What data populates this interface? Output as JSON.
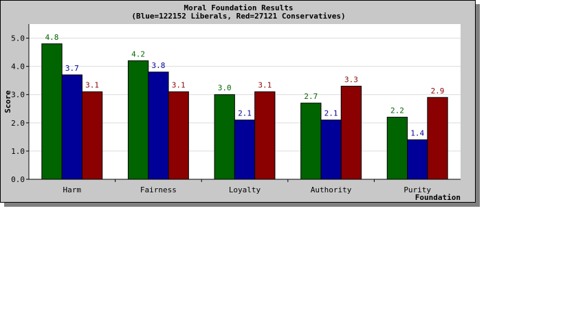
{
  "chart_data": {
    "type": "bar",
    "title": "Moral Foundation Results",
    "subtitle": "(Blue=122152 Liberals, Red=27121 Conservatives)",
    "xlabel": "Foundation",
    "ylabel": "Score",
    "categories": [
      "Harm",
      "Fairness",
      "Loyalty",
      "Authority",
      "Purity"
    ],
    "series": [
      {
        "color": "#006400",
        "values": [
          4.8,
          4.2,
          3.0,
          2.7,
          2.2
        ]
      },
      {
        "color": "#000099",
        "values": [
          3.7,
          3.8,
          2.1,
          2.1,
          1.4
        ]
      },
      {
        "color": "#8b0000",
        "values": [
          3.1,
          3.1,
          3.1,
          3.3,
          2.9
        ]
      }
    ],
    "ylim": [
      0,
      5.5
    ],
    "yticks": [
      "0.0",
      "1.0",
      "2.0",
      "3.0",
      "4.0",
      "5.0"
    ],
    "grid": true,
    "background_color": "#c8c8c8",
    "plot_background_color": "#ffffff"
  }
}
